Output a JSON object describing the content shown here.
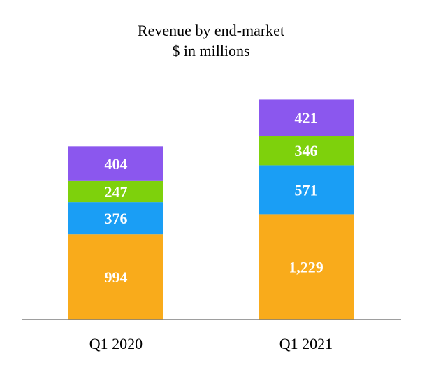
{
  "chart_data": {
    "type": "bar",
    "stacked": true,
    "title": "Revenue by end-market",
    "subtitle": "$ in millions",
    "xlabel": "",
    "ylabel": "",
    "categories": [
      "Q1 2020",
      "Q1 2021"
    ],
    "series": [
      {
        "values": [
          994,
          1229
        ],
        "labels": [
          "994",
          "1,229"
        ],
        "color": "#F9AB1B"
      },
      {
        "values": [
          376,
          571
        ],
        "labels": [
          "376",
          "571"
        ],
        "color": "#1A9EF5"
      },
      {
        "values": [
          247,
          346
        ],
        "labels": [
          "247",
          "346"
        ],
        "color": "#7ED10C"
      },
      {
        "values": [
          404,
          421
        ],
        "labels": [
          "404",
          "421"
        ],
        "color": "#8B57EE"
      }
    ],
    "ylim": [
      0,
      2750
    ],
    "grid": false,
    "legend": "none"
  }
}
